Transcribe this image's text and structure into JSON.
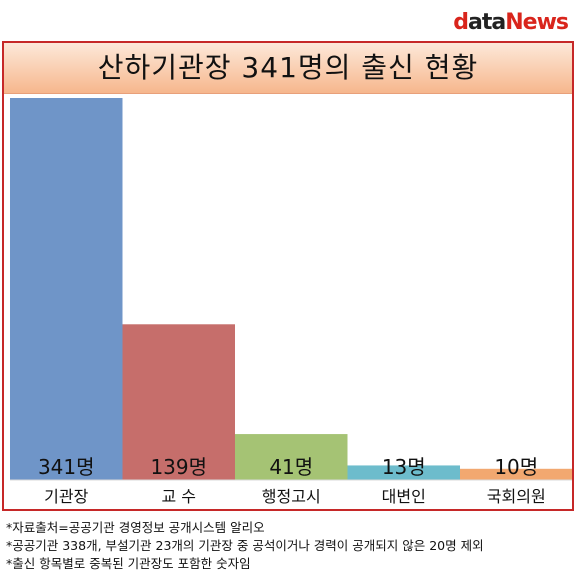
{
  "logo": {
    "part1": "d",
    "part2": "ata",
    "part3": "News"
  },
  "chart_data": {
    "type": "bar",
    "title": "산하기관장 341명의 출신 현황",
    "categories": [
      "기관장",
      "교 수",
      "행정고시",
      "대변인",
      "국회의원"
    ],
    "values": [
      341,
      139,
      41,
      13,
      10
    ],
    "value_labels": [
      "341명",
      "139명",
      "41명",
      "13명",
      "10명"
    ],
    "colors": [
      "#6f95c8",
      "#c66e6b",
      "#a5c374",
      "#6dbccc",
      "#f2a870"
    ],
    "ylim": [
      0,
      341
    ],
    "xlabel": "",
    "ylabel": "",
    "grid": false
  },
  "notes": [
    "*자료출처=공공기관 경영정보 공개시스템 알리오",
    "*공공기관 338개, 부설기관 23개의 기관장 중 공석이거나 경력이 공개되지 않은 20명 제외",
    "*출신 항목별로 중복된 기관장도 포함한 숫자임"
  ]
}
